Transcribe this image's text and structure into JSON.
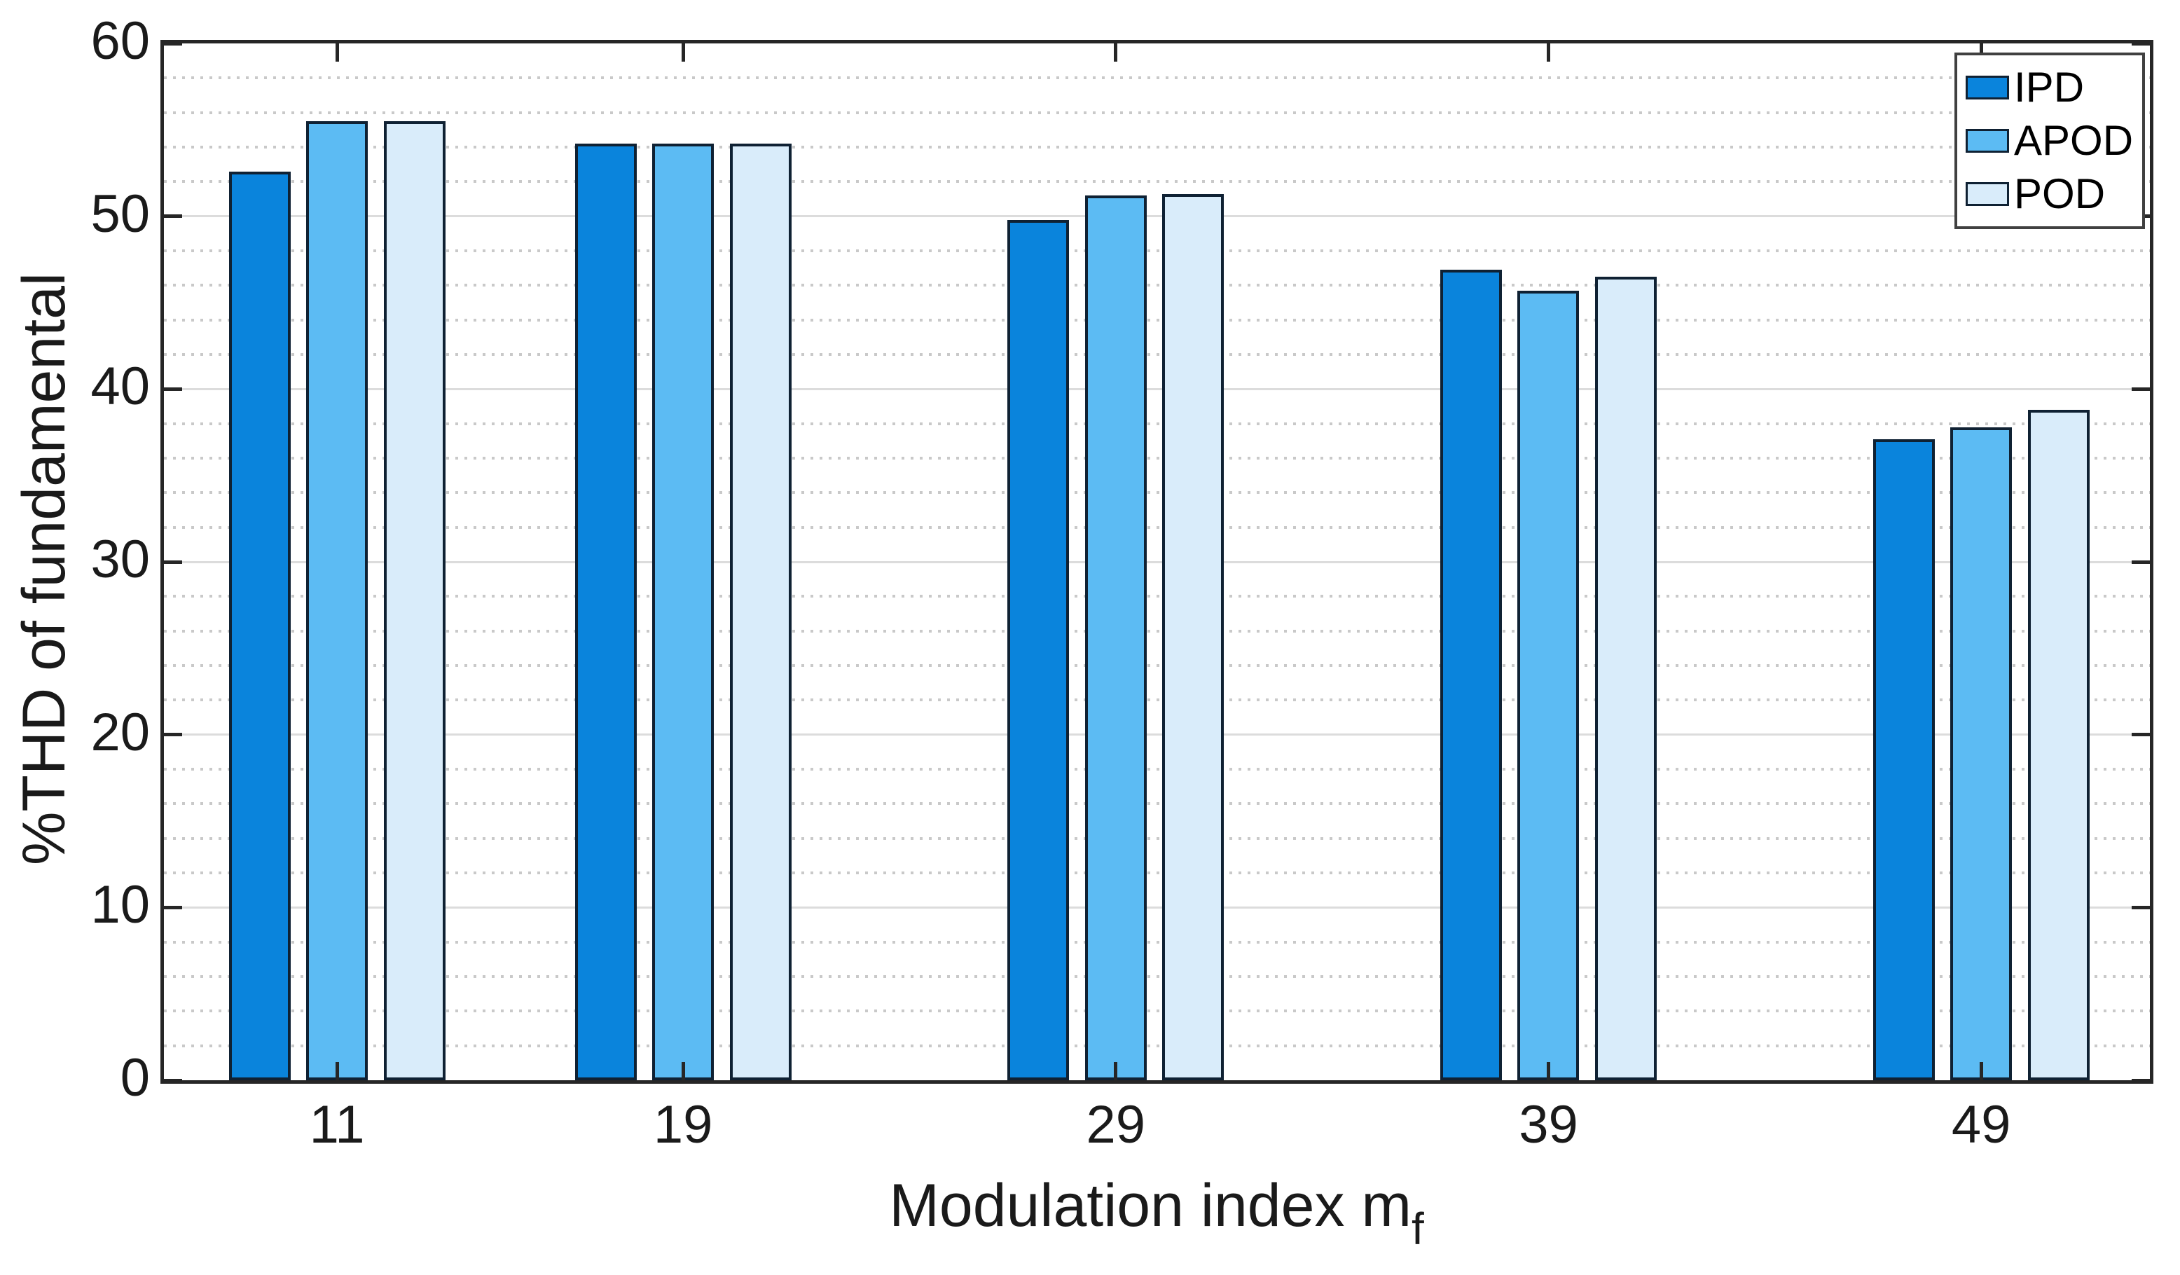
{
  "chart_data": {
    "type": "bar",
    "title": "",
    "categories": [
      11,
      19,
      29,
      39,
      49
    ],
    "x_tick_labels": [
      "11",
      "19",
      "29",
      "39",
      "49"
    ],
    "y_tick_labels": [
      "0",
      "10",
      "20",
      "30",
      "40",
      "50",
      "60"
    ],
    "series": [
      {
        "name": "IPD",
        "color": "#0a84dc",
        "values": [
          52.6,
          54.2,
          49.8,
          46.9,
          37.1
        ]
      },
      {
        "name": "APOD",
        "color": "#5cbbf3",
        "values": [
          55.5,
          54.2,
          51.2,
          45.7,
          37.8
        ]
      },
      {
        "name": "POD",
        "color": "#d9ecfa",
        "values": [
          55.5,
          54.2,
          51.3,
          46.5,
          38.8
        ]
      }
    ],
    "xlabel_main": "Modulation index m",
    "xlabel_sub": "f",
    "ylabel": "%THD of fundamental",
    "xlim": [
      7.0,
      52.9
    ],
    "ylim": [
      0,
      60
    ],
    "y_major_step": 10,
    "y_minor_step": 2,
    "grid": "horizontal major solid, minor dotted, no vertical grid",
    "legend_position": "top-right",
    "colors": {
      "bar_edge": "#0f2133",
      "axis": "#262626",
      "grid_major": "#dcdcdc",
      "grid_minor": "#c9c9c9",
      "legend_border": "#404040",
      "text": "#1a1a1a",
      "background": "#ffffff"
    }
  }
}
